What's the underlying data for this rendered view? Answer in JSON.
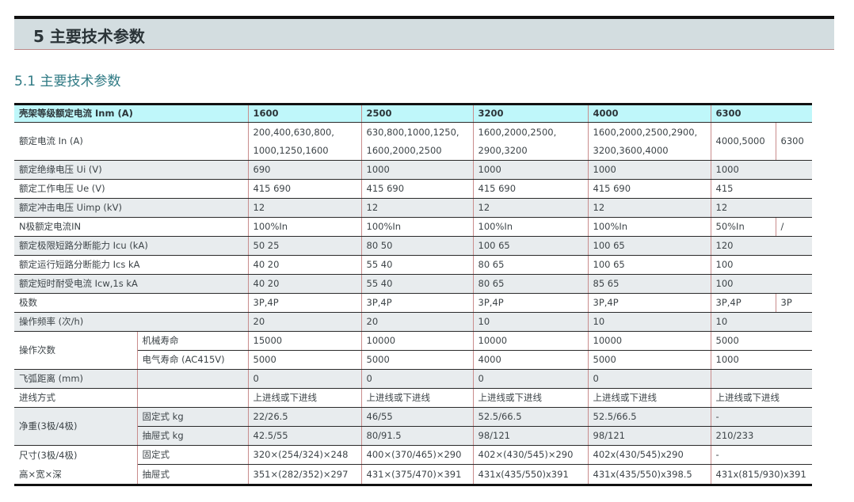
{
  "header": {
    "section_title": "5 主要技术参数",
    "subsection_title": "5.1 主要技术参数"
  },
  "colors": {
    "header_bar": "#d3dde0",
    "table_header": "#bff7fa",
    "subsection_text": "#2f7a84",
    "gray_row": "#e8ecee"
  },
  "table": {
    "header": {
      "label": "壳架等级额定电流 Inm (A)",
      "columns": [
        "1600",
        "2500",
        "3200",
        "4000",
        "6300"
      ]
    },
    "rows": [
      {
        "label": "额定电流 In (A)",
        "values": [
          "200,400,630,800,\n1000,1250,1600",
          "630,800,1000,1250,\n1600,2000,2500",
          "1600,2000,2500,\n2900,3200",
          "1600,2000,2500,2900,\n3200,3600,4000",
          [
            "4000,5000",
            "6300"
          ]
        ]
      },
      {
        "label": "额定绝缘电压 Ui (V)",
        "values": [
          "690",
          "1000",
          "1000",
          "1000",
          "1000"
        ]
      },
      {
        "label": "额定工作电压 Ue (V)",
        "values": [
          "415    690",
          "415    690",
          "415    690",
          "415    690",
          "415"
        ]
      },
      {
        "label": "额定冲击电压 Uimp (kV)",
        "values": [
          "12",
          "12",
          "12",
          "12",
          "12"
        ]
      },
      {
        "label": "N极额定电流IN",
        "values": [
          "100%In",
          "100%In",
          "100%In",
          "100%In",
          [
            "50%In",
            "/"
          ]
        ]
      },
      {
        "label": "额定极限短路分断能力 Icu (kA)",
        "values": [
          "50    25",
          "80    50",
          "100    65",
          "100    65",
          "120"
        ]
      },
      {
        "label": "额定运行短路分断能力 Ics kA",
        "values": [
          "40    20",
          "55    40",
          "80    65",
          "100    65",
          "100"
        ]
      },
      {
        "label": "额定短时耐受电流 Icw,1s kA",
        "values": [
          "40    20",
          "55    40",
          "80    65",
          "85    65",
          "100"
        ]
      },
      {
        "label": "极数",
        "values": [
          "3P,4P",
          "3P,4P",
          "3P,4P",
          "3P,4P",
          [
            "3P,4P",
            "3P"
          ]
        ]
      },
      {
        "label": "操作频率 (次/h)",
        "values": [
          "20",
          "20",
          "10",
          "10",
          "10"
        ]
      },
      {
        "label": "操作次数",
        "sub": "机械寿命",
        "values": [
          "15000",
          "10000",
          "10000",
          "10000",
          "5000"
        ]
      },
      {
        "sub": "电气寿命 (AC415V)",
        "values": [
          "5000",
          "5000",
          "4000",
          "5000",
          "1000"
        ]
      },
      {
        "label": "飞弧距离 (mm)",
        "sub": "",
        "values": [
          "0",
          "0",
          "0",
          "0",
          ""
        ]
      },
      {
        "label": "进线方式",
        "sub": "",
        "values": [
          "上进线或下进线",
          "上进线或下进线",
          "上进线或下进线",
          "上进线或下进线",
          "上进线或下进线"
        ]
      },
      {
        "label": "净重(3极/4极)",
        "sub": "固定式 kg",
        "values": [
          "22/26.5",
          "46/55",
          "52.5/66.5",
          "52.5/66.5",
          "-"
        ]
      },
      {
        "sub": "抽屉式 kg",
        "values": [
          "42.5/55",
          "80/91.5",
          "98/121",
          "98/121",
          "210/233"
        ]
      },
      {
        "label": "尺寸(3极/4极)",
        "label2": "高×宽×深",
        "sub": "固定式",
        "values": [
          "320×(254/324)×248",
          "400×(370/465)×290",
          "402×(430/545)×290",
          "402x(430/545)x290",
          "-"
        ]
      },
      {
        "sub": "抽屉式",
        "values": [
          "351×(282/352)×297",
          "431×(375/470)×391",
          "431x(435/550)x391",
          "431x(435/550)x398.5",
          "431x(815/930)x391"
        ]
      }
    ]
  }
}
